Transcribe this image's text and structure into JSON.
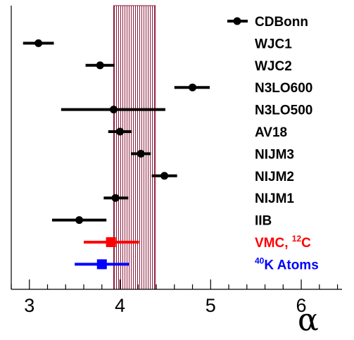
{
  "chart_data": {
    "type": "scatter",
    "xlabel": "α",
    "ylabel": "",
    "xlim": [
      2.8,
      6.45
    ],
    "x_ticks": [
      "3",
      "4",
      "5",
      "6"
    ],
    "grid": false,
    "band": {
      "x_min": 3.93,
      "x_max": 4.39,
      "color": "#8b1a3a"
    },
    "legend_marker": {
      "label": "CDBonn",
      "color": "#000000"
    },
    "series": [
      {
        "name": "CDBonn",
        "value": null,
        "err_low": null,
        "err_high": null,
        "color": "#000000",
        "marker": "circle"
      },
      {
        "name": "WJC1",
        "value": 3.1,
        "err_low": 2.93,
        "err_high": 3.27,
        "color": "#000000",
        "marker": "circle"
      },
      {
        "name": "WJC2",
        "value": 3.78,
        "err_low": 3.62,
        "err_high": 3.94,
        "color": "#000000",
        "marker": "circle"
      },
      {
        "name": "N3LO600",
        "value": 4.8,
        "err_low": 4.6,
        "err_high": 4.99,
        "color": "#000000",
        "marker": "circle"
      },
      {
        "name": "N3LO500",
        "value": 3.93,
        "err_low": 3.35,
        "err_high": 4.5,
        "color": "#000000",
        "marker": "circle"
      },
      {
        "name": "AV18",
        "value": 4.0,
        "err_low": 3.87,
        "err_high": 4.13,
        "color": "#000000",
        "marker": "circle"
      },
      {
        "name": "NIJM3",
        "value": 4.23,
        "err_low": 4.12,
        "err_high": 4.34,
        "color": "#000000",
        "marker": "circle"
      },
      {
        "name": "NIJM2",
        "value": 4.49,
        "err_low": 4.35,
        "err_high": 4.63,
        "color": "#000000",
        "marker": "circle"
      },
      {
        "name": "NIJM1",
        "value": 3.95,
        "err_low": 3.82,
        "err_high": 4.09,
        "color": "#000000",
        "marker": "circle"
      },
      {
        "name": "IIB",
        "value": 3.55,
        "err_low": 3.25,
        "err_high": 3.85,
        "color": "#000000",
        "marker": "circle"
      },
      {
        "name": "VMC, 12C",
        "label_main": "VMC, ",
        "label_sup": "12",
        "label_tail": "C",
        "value": 3.9,
        "err_low": 3.6,
        "err_high": 4.21,
        "color": "#ff0000",
        "marker": "square"
      },
      {
        "name": "40K Atoms",
        "label_pre_sup": "40",
        "label_main": "K Atoms",
        "value": 3.8,
        "err_low": 3.5,
        "err_high": 4.1,
        "color": "#0000ff",
        "marker": "square"
      }
    ]
  }
}
